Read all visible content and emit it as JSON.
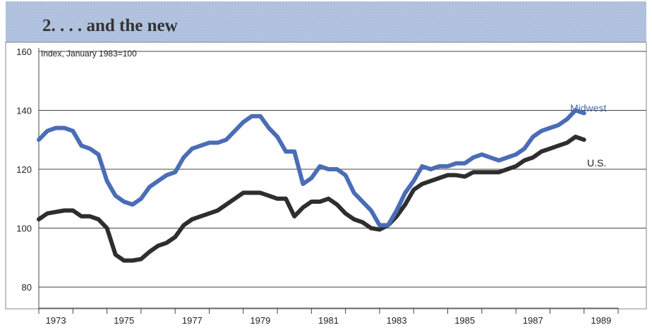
{
  "chart_data": {
    "type": "line",
    "title": "2. . . . and the new",
    "ylabel": "Index, January 1983=100",
    "x": [
      1973.0,
      1973.25,
      1973.5,
      1973.75,
      1974.0,
      1974.25,
      1974.5,
      1974.75,
      1975.0,
      1975.25,
      1975.5,
      1975.75,
      1976.0,
      1976.25,
      1976.5,
      1976.75,
      1977.0,
      1977.25,
      1977.5,
      1977.75,
      1978.0,
      1978.25,
      1978.5,
      1978.75,
      1979.0,
      1979.25,
      1979.5,
      1979.75,
      1980.0,
      1980.25,
      1980.5,
      1980.75,
      1981.0,
      1981.25,
      1981.5,
      1981.75,
      1982.0,
      1982.25,
      1982.5,
      1982.75,
      1983.0,
      1983.25,
      1983.5,
      1983.75,
      1984.0,
      1984.25,
      1984.5,
      1984.75,
      1985.0,
      1985.25,
      1985.5,
      1985.75,
      1986.0,
      1986.25,
      1986.5,
      1986.75,
      1987.0,
      1987.25,
      1987.5,
      1987.75,
      1988.0,
      1988.25,
      1988.5,
      1988.75,
      1989.0
    ],
    "series": [
      {
        "name": "Midwest",
        "color": "#4a6db5",
        "values": [
          130,
          133,
          134,
          134,
          133,
          128,
          127,
          125,
          116,
          111,
          109,
          108,
          110,
          114,
          116,
          118,
          119,
          124,
          127,
          128,
          129,
          129,
          130,
          133,
          136,
          138,
          138,
          134,
          131,
          126,
          126,
          115,
          117,
          121,
          120,
          120,
          118,
          112,
          109,
          106,
          101,
          101,
          106,
          112,
          116,
          121,
          120,
          121,
          121,
          122,
          122,
          124,
          125,
          124,
          123,
          124,
          125,
          127,
          131,
          133,
          134,
          135,
          137,
          140,
          139
        ]
      },
      {
        "name": "U.S.",
        "color": "#2e2e2e",
        "values": [
          103,
          105,
          105.5,
          106,
          106,
          104,
          104,
          103,
          100,
          91,
          89,
          89,
          89.5,
          92,
          94,
          95,
          97,
          101,
          103,
          104,
          105,
          106,
          108,
          110,
          112,
          112,
          112,
          111,
          110,
          110,
          104,
          107,
          109,
          109,
          110,
          108,
          105,
          103,
          102,
          100,
          99.5,
          101,
          104,
          108,
          113,
          115,
          116,
          117,
          118,
          118,
          117.5,
          119,
          119,
          119,
          119,
          120,
          121,
          123,
          124,
          126,
          127,
          128,
          129,
          131,
          130
        ]
      }
    ],
    "xlim": [
      1973,
      1990
    ],
    "xticks": [
      1973,
      1975,
      1977,
      1979,
      1981,
      1983,
      1985,
      1987,
      1989
    ],
    "minor_xticks": [
      1973,
      1974,
      1975,
      1976,
      1977,
      1978,
      1979,
      1980,
      1981,
      1982,
      1983,
      1984,
      1985,
      1986,
      1987,
      1988,
      1989,
      1990
    ],
    "ylim": [
      75,
      165
    ],
    "yticks": [
      80,
      100,
      120,
      140,
      160
    ],
    "grid": true
  }
}
